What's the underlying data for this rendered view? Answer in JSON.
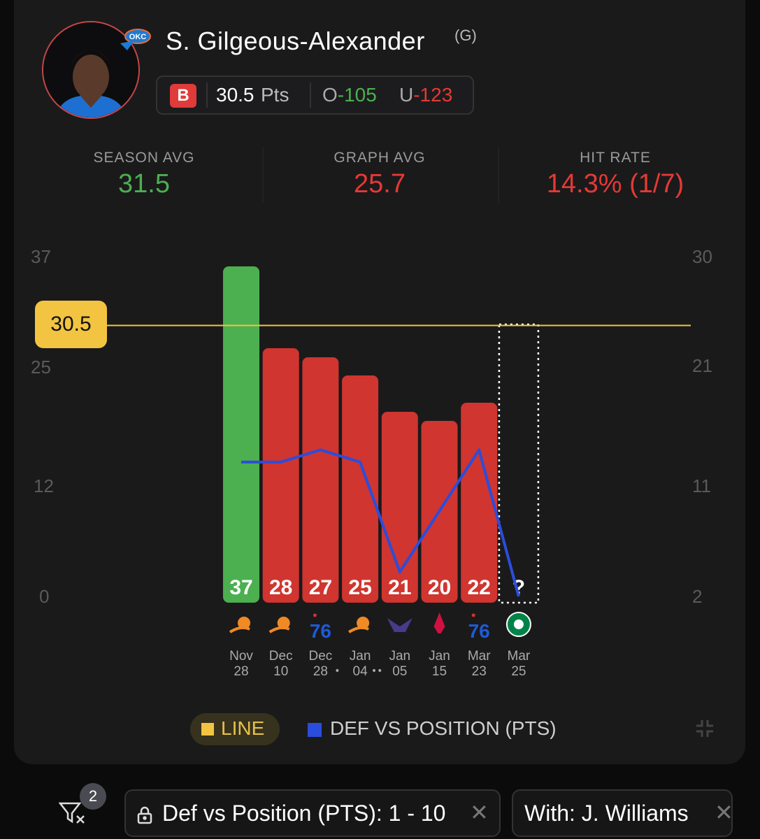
{
  "player": {
    "name": "S. Gilgeous-Alexander",
    "position": "(G)",
    "team_logo_icon": "okc-thunder-logo",
    "avatar": "player-photo"
  },
  "prop": {
    "book_letter": "B",
    "book_color": "#e03a3a",
    "value": "30.5",
    "unit": "Pts",
    "over_label": "O",
    "over_odds": "-105",
    "under_label": "U",
    "under_odds": "-123"
  },
  "stats": [
    {
      "label": "SEASON AVG",
      "value": "31.5",
      "color": "#4caf50"
    },
    {
      "label": "GRAPH AVG",
      "value": "25.7",
      "color": "#e53935"
    },
    {
      "label": "HIT RATE",
      "value": "14.3% (1/7)",
      "color": "#e53935"
    }
  ],
  "chart_data": {
    "type": "bar",
    "y_left_ticks": [
      "37",
      "25",
      "12",
      "0"
    ],
    "y_right_ticks": [
      "30",
      "21",
      "11",
      "2"
    ],
    "ylim": [
      0,
      37
    ],
    "line_value": 30.5,
    "line_label": "30.5",
    "games": [
      {
        "opp_icon": "suns-logo",
        "month": "Nov",
        "day": "28",
        "dots": "",
        "value": 37,
        "label": "37",
        "hit": true,
        "def_rank": 13
      },
      {
        "opp_icon": "suns-logo",
        "month": "Dec",
        "day": "10",
        "dots": "",
        "value": 28,
        "label": "28",
        "hit": false,
        "def_rank": 13
      },
      {
        "opp_icon": "76ers-logo",
        "month": "Dec",
        "day": "28",
        "dots": "•",
        "value": 27,
        "label": "27",
        "hit": false,
        "def_rank": 14
      },
      {
        "opp_icon": "suns-logo",
        "month": "Jan",
        "day": "04",
        "dots": "••",
        "value": 25,
        "label": "25",
        "hit": false,
        "def_rank": 13
      },
      {
        "opp_icon": "hornets-logo",
        "month": "Jan",
        "day": "05",
        "dots": "",
        "value": 21,
        "label": "21",
        "hit": false,
        "def_rank": 4
      },
      {
        "opp_icon": "rockets-logo",
        "month": "Jan",
        "day": "15",
        "dots": "",
        "value": 20,
        "label": "20",
        "hit": false,
        "def_rank": 9
      },
      {
        "opp_icon": "76ers-logo",
        "month": "Mar",
        "day": "23",
        "dots": "",
        "value": 22,
        "label": "22",
        "hit": false,
        "def_rank": 14
      },
      {
        "opp_icon": "celtics-logo",
        "month": "Mar",
        "day": "25",
        "dots": "",
        "value": null,
        "label": "?",
        "hit": null,
        "def_rank": 2
      }
    ],
    "colors": {
      "hit": "#4caf50",
      "miss": "#d0352f",
      "line": "#f2c441",
      "def": "#2b4ddb"
    },
    "legend": [
      {
        "label": "LINE",
        "color": "#f2c441"
      },
      {
        "label": "DEF VS POSITION (PTS)",
        "color": "#2b4ddb"
      }
    ]
  },
  "filters": {
    "count": "2",
    "chips": [
      {
        "label": "Def vs Position (PTS): 1 - 10",
        "locked": true
      },
      {
        "label": "With: J. Williams",
        "locked": false
      }
    ]
  }
}
